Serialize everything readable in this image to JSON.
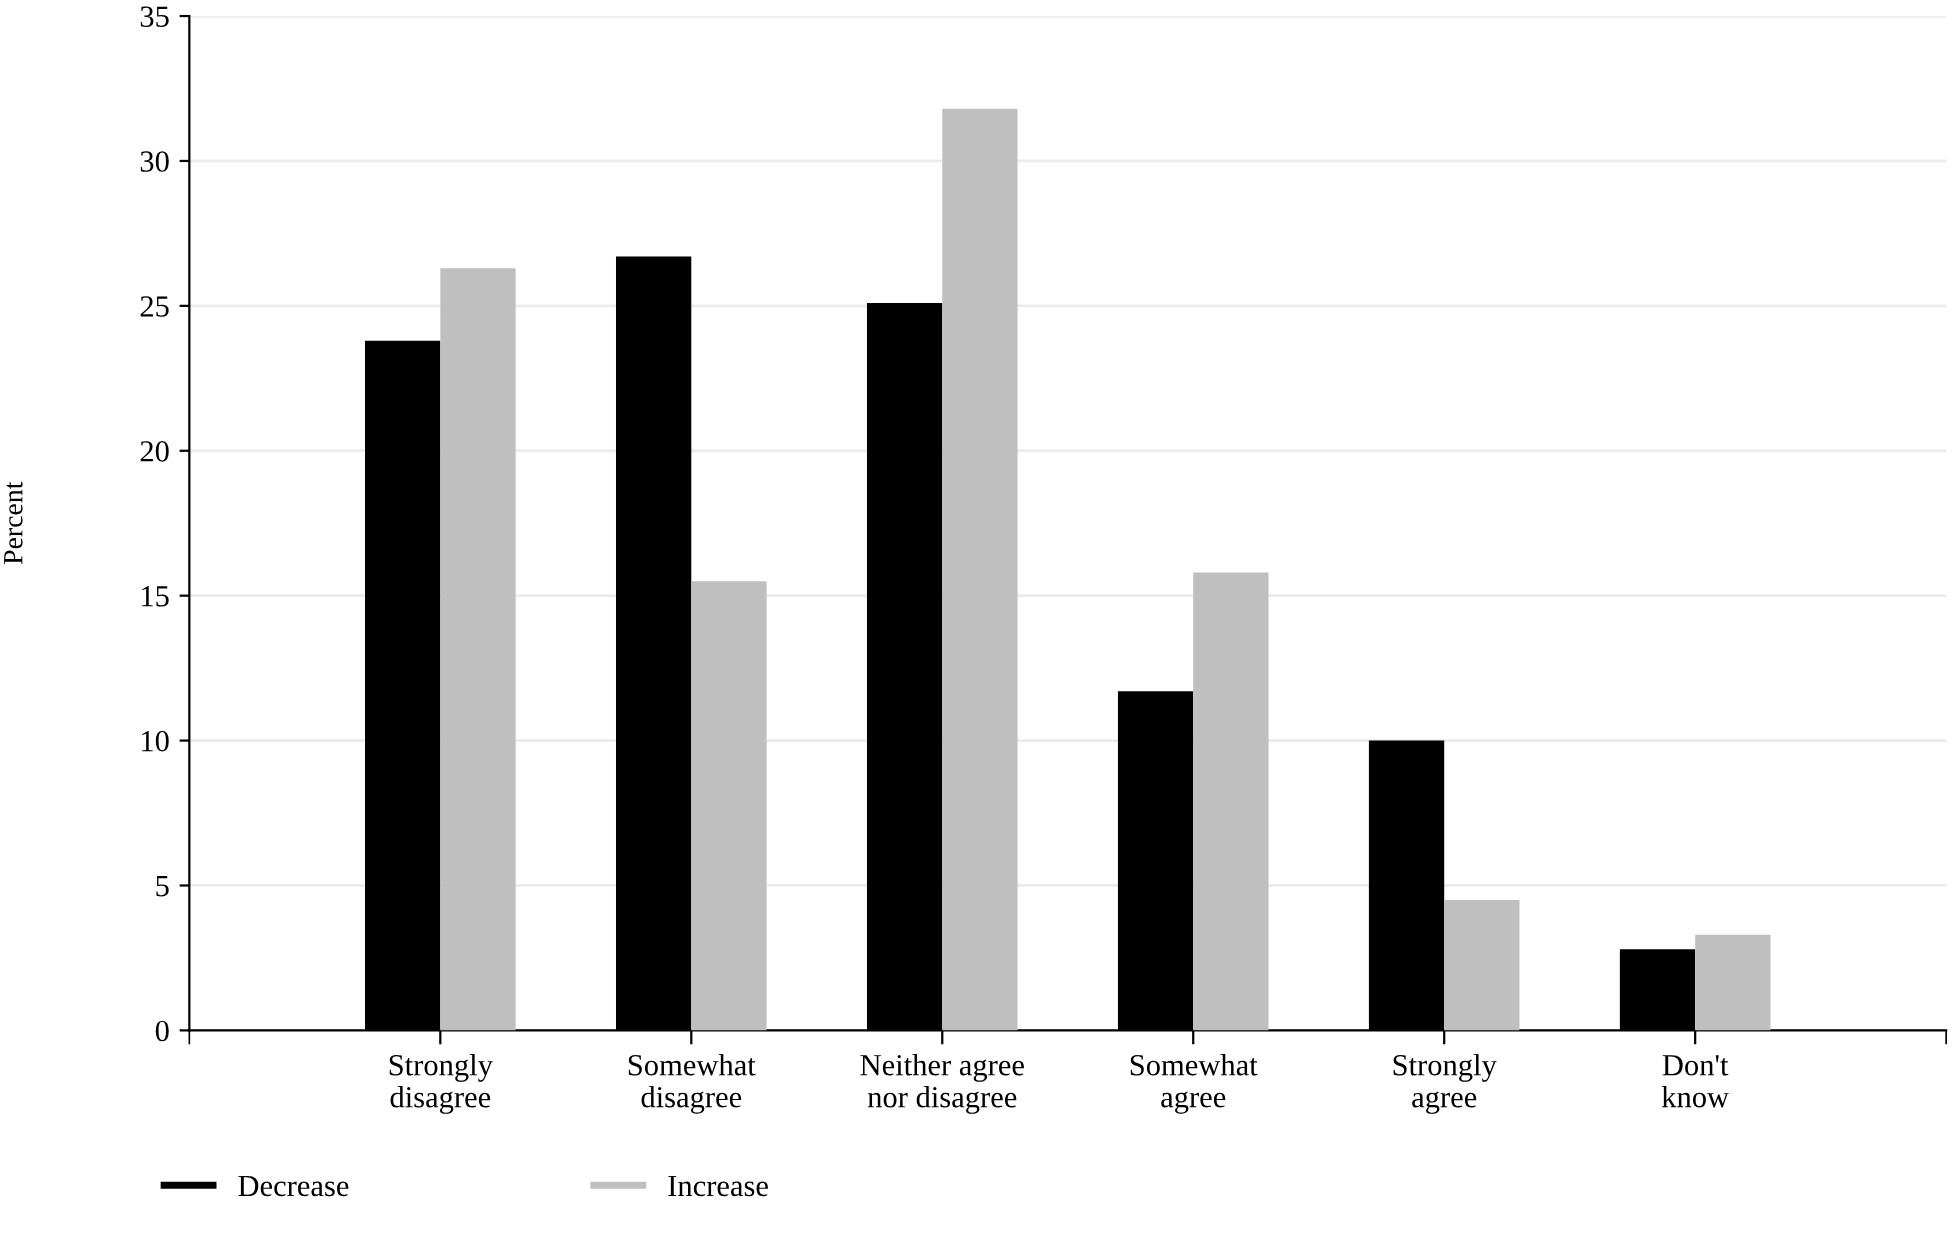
{
  "chart_data": {
    "type": "bar",
    "ylabel": "Percent",
    "categories": [
      "Strongly\ndisagree",
      "Somewhat\ndisagree",
      "Neither agree\nnor disagree",
      "Somewhat\nagree",
      "Strongly\nagree",
      "Don't\nknow"
    ],
    "series": [
      {
        "name": "Decrease",
        "color": "#000000",
        "values": [
          23.8,
          26.7,
          25.1,
          11.7,
          10.0,
          2.8
        ]
      },
      {
        "name": "Increase",
        "color": "#bfbfbf",
        "values": [
          26.3,
          15.5,
          31.8,
          15.8,
          4.5,
          3.3
        ]
      }
    ],
    "ylim": [
      0,
      35
    ],
    "yticks": [
      0,
      5,
      10,
      15,
      20,
      25,
      30,
      35
    ],
    "grid": "y",
    "legend": "bottom left"
  }
}
